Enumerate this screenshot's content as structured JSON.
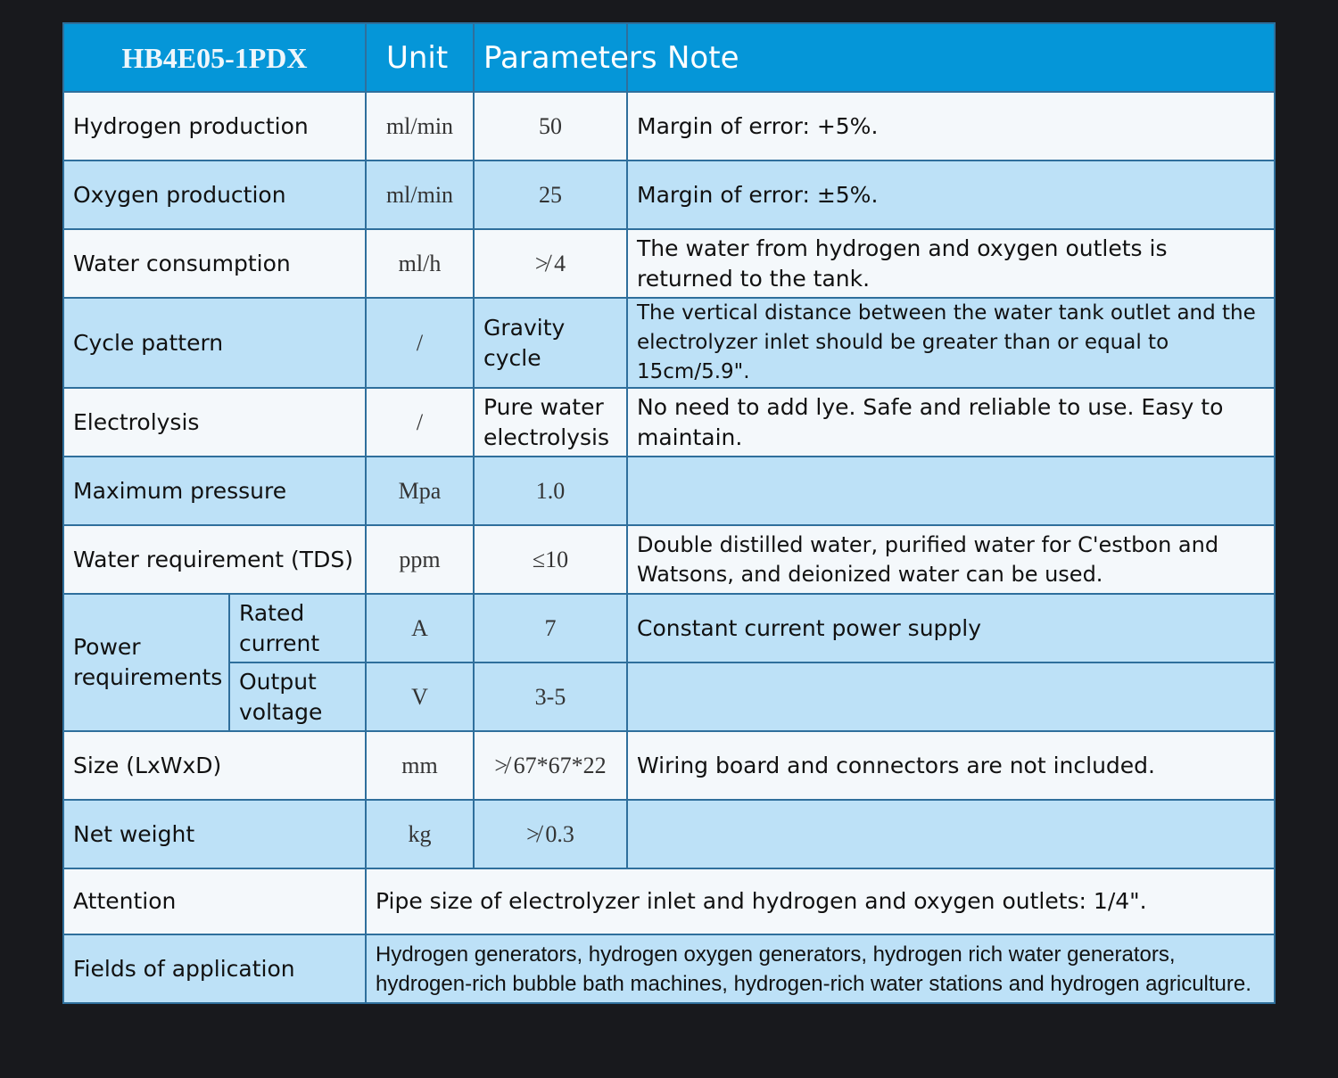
{
  "header": {
    "model": "HB4E05-1PDX",
    "unit": "Unit",
    "parameters": "Parameters",
    "note": "Note"
  },
  "rows": [
    {
      "name": "Hydrogen production",
      "unit": "ml/min",
      "param": "50",
      "note": "Margin of error: +5%."
    },
    {
      "name": "Oxygen production",
      "unit": "ml/min",
      "param": "25",
      "note": "Margin of error: ±5%."
    },
    {
      "name": "Water consumption",
      "unit": "ml/h",
      "param": "≯ 4",
      "note": "The water from hydrogen and oxygen outlets is returned to the tank."
    },
    {
      "name": "Cycle pattern",
      "unit": "/",
      "param": "Gravity cycle",
      "note": "The vertical distance between the water tank outlet and the electrolyzer inlet should be greater than or equal to 15cm/5.9\"."
    },
    {
      "name": "Electrolysis",
      "unit": "/",
      "param": "Pure water electrolysis",
      "note": "No need to add lye. Safe and reliable to use. Easy to maintain."
    },
    {
      "name": "Maximum pressure",
      "unit": "Mpa",
      "param": "1.0",
      "note": ""
    },
    {
      "name": "Water requirement (TDS)",
      "unit": "ppm",
      "param": "≤10",
      "note": "Double distilled water, purified water for C'estbon and Watsons, and deionized water can be used."
    }
  ],
  "power": {
    "name": "Power requirements",
    "sub": [
      {
        "name": "Rated current",
        "unit": "A",
        "param": "7",
        "note": "Constant current power supply"
      },
      {
        "name": "Output voltage",
        "unit": "V",
        "param": "3-5",
        "note": ""
      }
    ]
  },
  "rows2": [
    {
      "name": "Size (LxWxD)",
      "unit": "mm",
      "param": "≯ 67*67*22",
      "note": "Wiring board and connectors are not included."
    },
    {
      "name": "Net weight",
      "unit": "kg",
      "param": "≯ 0.3",
      "note": ""
    }
  ],
  "attention": {
    "name": "Attention",
    "text": "Pipe size of electrolyzer inlet and hydrogen and oxygen outlets: 1/4\"."
  },
  "fields": {
    "name": "Fields of application",
    "text": "Hydrogen generators, hydrogen oxygen generators, hydrogen rich water generators, hydrogen-rich bubble bath machines, hydrogen-rich water stations and hydrogen agriculture."
  }
}
